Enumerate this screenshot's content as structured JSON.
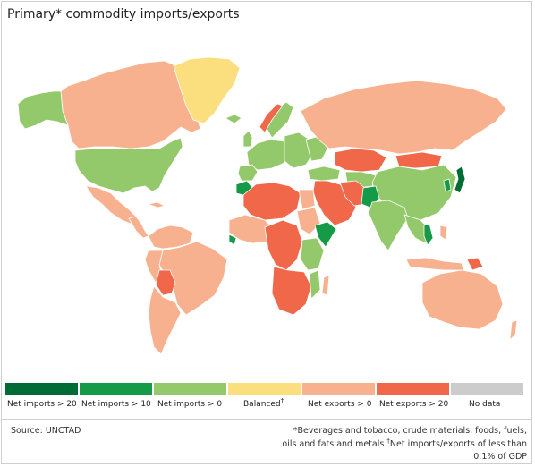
{
  "title": "Primary* commodity imports/exports",
  "colors": {
    "net_imports_20": "#006b35",
    "net_imports_10": "#159a48",
    "net_imports_0": "#93c96a",
    "balanced": "#fbdf7f",
    "net_exports_0": "#f7b18f",
    "net_exports_20": "#f0674a",
    "no_data": "#cccccc",
    "ocean": "#ffffff",
    "border": "#ffffff"
  },
  "legend": [
    {
      "label": "Net imports > 20",
      "color": "#006b35"
    },
    {
      "label": "Net imports > 10",
      "color": "#159a48"
    },
    {
      "label": "Net imports > 0",
      "color": "#93c96a"
    },
    {
      "label": "Balanced",
      "mark": "†",
      "color": "#fbdf7f"
    },
    {
      "label": "Net exports > 0",
      "color": "#f7b18f"
    },
    {
      "label": "Net exports > 20",
      "color": "#f0674a"
    },
    {
      "label": "No data",
      "color": "#cccccc"
    }
  ],
  "source": "Source: UNCTAD",
  "footnote_1": "*Beverages and tobacco, crude materials, foods, fuels,",
  "footnote_2_a": "oils and fats and metals ",
  "footnote_2_mark": "†",
  "footnote_2_b": "Net imports/exports of less than",
  "footnote_3": "0.1% of GDP"
}
